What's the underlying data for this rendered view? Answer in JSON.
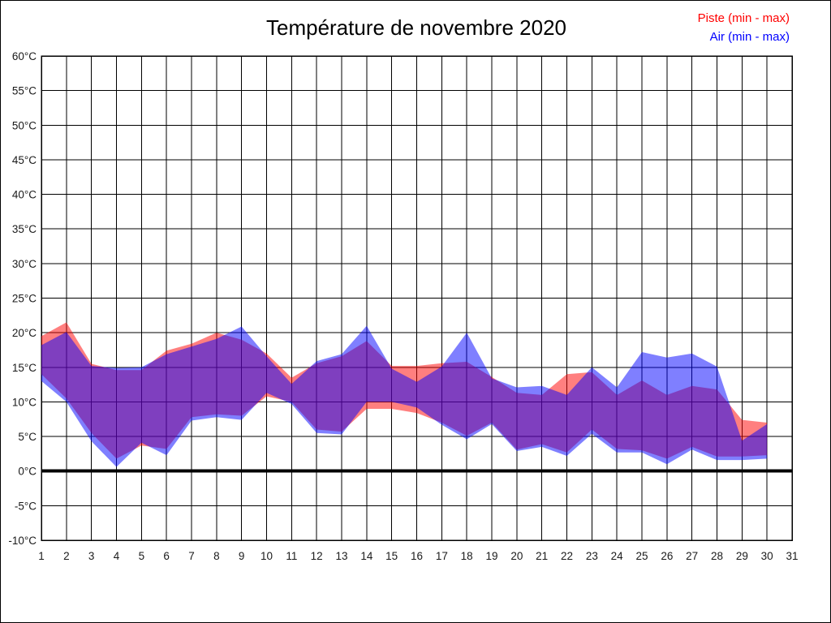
{
  "page": {
    "background": "#ffffff",
    "frame_color": "#000000"
  },
  "title": "Température de novembre 2020",
  "legend": [
    {
      "label": "Piste (min - max)",
      "color": "#ff0000"
    },
    {
      "label": "Air (min - max)",
      "color": "#0000ff"
    }
  ],
  "chart_data": {
    "type": "area",
    "title": "Température de novembre 2020",
    "xlabel": "",
    "ylabel": "",
    "x_unit": "day of month",
    "y_unit": "°C",
    "xlim": [
      1,
      31
    ],
    "ylim": [
      -10,
      60
    ],
    "grid": true,
    "grid_color": "#000000",
    "zero_line": {
      "value": 0,
      "color": "#000000",
      "width": 4
    },
    "x_ticks": [
      1,
      2,
      3,
      4,
      5,
      6,
      7,
      8,
      9,
      10,
      11,
      12,
      13,
      14,
      15,
      16,
      17,
      18,
      19,
      20,
      21,
      22,
      23,
      24,
      25,
      26,
      27,
      28,
      29,
      30,
      31
    ],
    "y_ticks": [
      {
        "value": 60,
        "label": "60°C"
      },
      {
        "value": 55,
        "label": "55°C"
      },
      {
        "value": 50,
        "label": "50°C"
      },
      {
        "value": 45,
        "label": "45°C"
      },
      {
        "value": 40,
        "label": "40°C"
      },
      {
        "value": 35,
        "label": "35°C"
      },
      {
        "value": 30,
        "label": "30°C"
      },
      {
        "value": 25,
        "label": "25°C"
      },
      {
        "value": 20,
        "label": "20°C"
      },
      {
        "value": 15,
        "label": "15°C"
      },
      {
        "value": 10,
        "label": "10°C"
      },
      {
        "value": 5,
        "label": "5°C"
      },
      {
        "value": 0,
        "label": "0°C"
      },
      {
        "value": -5,
        "label": "-5°C"
      },
      {
        "value": -10,
        "label": "-10°C"
      }
    ],
    "days": [
      1,
      2,
      3,
      4,
      5,
      6,
      7,
      8,
      9,
      10,
      11,
      12,
      13,
      14,
      15,
      16,
      17,
      18,
      19,
      20,
      21,
      22,
      23,
      24,
      25,
      26,
      27,
      28,
      29,
      30
    ],
    "series": [
      {
        "name": "Piste (min - max)",
        "color": "#ff0000",
        "fill_opacity": 0.5,
        "min": [
          14,
          10.5,
          5.5,
          1.8,
          3.7,
          3.2,
          7.8,
          8.2,
          8,
          10.8,
          10,
          6,
          5.7,
          9,
          9,
          8.4,
          7,
          5.1,
          7,
          3.1,
          3.9,
          2.7,
          6,
          3.2,
          3,
          1.8,
          3.5,
          2.1,
          2.1,
          2.3
        ],
        "max": [
          19.5,
          21.5,
          15.5,
          14.6,
          14.6,
          17.4,
          18.4,
          20,
          19,
          17,
          13.5,
          15.6,
          16.6,
          18.8,
          15.2,
          15.2,
          15.6,
          15.8,
          13.6,
          11.3,
          11,
          14,
          14.3,
          11,
          13.1,
          11,
          12.3,
          11.8,
          7.4,
          7
        ]
      },
      {
        "name": "Air (min - max)",
        "color": "#0000ff",
        "fill_opacity": 0.5,
        "min": [
          13,
          10,
          4.3,
          0.6,
          4.1,
          2.3,
          7.3,
          7.8,
          7.4,
          11.3,
          9.7,
          5.5,
          5.3,
          10,
          10,
          9.2,
          6.7,
          4.6,
          6.8,
          2.9,
          3.5,
          2.2,
          5.4,
          2.7,
          2.7,
          1,
          3.1,
          1.6,
          1.6,
          1.8
        ],
        "max": [
          18.2,
          20.1,
          15.2,
          14.9,
          15,
          16.9,
          18,
          19.1,
          20.9,
          16.6,
          12.6,
          15.9,
          16.9,
          21,
          14.8,
          12.9,
          15.1,
          20,
          13.4,
          12.1,
          12.3,
          11,
          15,
          12.1,
          17.2,
          16.4,
          17,
          15.1,
          4.4,
          6.8
        ]
      }
    ]
  }
}
